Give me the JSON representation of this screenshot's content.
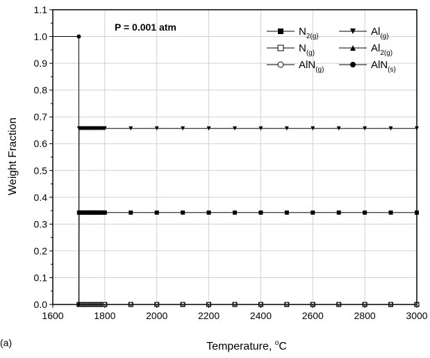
{
  "chart_data": {
    "type": "line",
    "xlabel": "Temperature, ",
    "xlabel_unit": "C",
    "xlabel_degree": "o",
    "ylabel": "Weight Fraction",
    "annotation": "P = 0.001 atm",
    "panel_label": "(a)",
    "xlim": [
      1600,
      3000
    ],
    "ylim": [
      0.0,
      1.1
    ],
    "x_ticks": [
      "1600",
      "1800",
      "2000",
      "2200",
      "2400",
      "2600",
      "2800",
      "3000"
    ],
    "y_ticks": [
      "0.0",
      "0.1",
      "0.2",
      "0.3",
      "0.4",
      "0.5",
      "0.6",
      "0.7",
      "0.8",
      "0.9",
      "1.0",
      "1.1"
    ],
    "grid": true,
    "legend_position": "top-right",
    "x": [
      1600,
      1700,
      1701,
      1705,
      1710,
      1715,
      1720,
      1725,
      1730,
      1735,
      1740,
      1745,
      1750,
      1755,
      1760,
      1765,
      1770,
      1775,
      1780,
      1785,
      1790,
      1795,
      1800,
      1900,
      2000,
      2100,
      2200,
      2300,
      2400,
      2500,
      2600,
      2700,
      2800,
      2900,
      3000
    ],
    "series": [
      {
        "name": "N",
        "sub": "2(g)",
        "marker": "square-filled",
        "color": "#000000",
        "values": [
          0,
          0,
          0.343,
          0.343,
          0.343,
          0.343,
          0.343,
          0.343,
          0.343,
          0.343,
          0.343,
          0.343,
          0.343,
          0.343,
          0.343,
          0.343,
          0.343,
          0.343,
          0.343,
          0.343,
          0.343,
          0.343,
          0.343,
          0.343,
          0.343,
          0.343,
          0.343,
          0.343,
          0.343,
          0.343,
          0.343,
          0.343,
          0.343,
          0.343,
          0.343
        ]
      },
      {
        "name": "Al",
        "sub": "(g)",
        "marker": "triangle-down-filled",
        "color": "#000000",
        "values": [
          0,
          0,
          0.657,
          0.657,
          0.657,
          0.657,
          0.657,
          0.657,
          0.657,
          0.657,
          0.657,
          0.657,
          0.657,
          0.657,
          0.657,
          0.657,
          0.657,
          0.657,
          0.657,
          0.657,
          0.657,
          0.657,
          0.657,
          0.657,
          0.657,
          0.657,
          0.657,
          0.657,
          0.657,
          0.657,
          0.657,
          0.657,
          0.657,
          0.657,
          0.657
        ]
      },
      {
        "name": "N",
        "sub": "(g)",
        "marker": "square-open",
        "color": "#000000",
        "values": [
          0,
          0,
          0,
          0,
          0,
          0,
          0,
          0,
          0,
          0,
          0,
          0,
          0,
          0,
          0,
          0,
          0,
          0,
          0,
          0,
          0,
          0,
          0,
          0,
          0,
          0,
          0,
          0,
          0,
          0,
          0,
          0,
          0,
          0,
          0
        ]
      },
      {
        "name": "Al",
        "sub": "2(g)",
        "marker": "triangle-up-filled",
        "color": "#000000",
        "values": [
          0,
          0,
          0,
          0,
          0,
          0,
          0,
          0,
          0,
          0,
          0,
          0,
          0,
          0,
          0,
          0,
          0,
          0,
          0,
          0,
          0,
          0,
          0,
          0,
          0,
          0,
          0,
          0,
          0,
          0,
          0,
          0,
          0,
          0,
          0
        ]
      },
      {
        "name": "AlN",
        "sub": "(g)",
        "marker": "circle-open",
        "color": "#000000",
        "values": [
          0,
          0,
          0,
          0,
          0,
          0,
          0,
          0,
          0,
          0,
          0,
          0,
          0,
          0,
          0,
          0,
          0,
          0,
          0,
          0,
          0,
          0,
          0,
          0,
          0,
          0,
          0,
          0,
          0,
          0,
          0,
          0,
          0,
          0,
          0
        ]
      },
      {
        "name": "AlN",
        "sub": "(s)",
        "marker": "circle-filled",
        "color": "#000000",
        "values": [
          1.0,
          1.0,
          0,
          0,
          0,
          0,
          0,
          0,
          0,
          0,
          0,
          0,
          0,
          0,
          0,
          0,
          0,
          0,
          0,
          0,
          0,
          0,
          0,
          0,
          0,
          0,
          0,
          0,
          0,
          0,
          0,
          0,
          0,
          0,
          0
        ]
      }
    ]
  }
}
